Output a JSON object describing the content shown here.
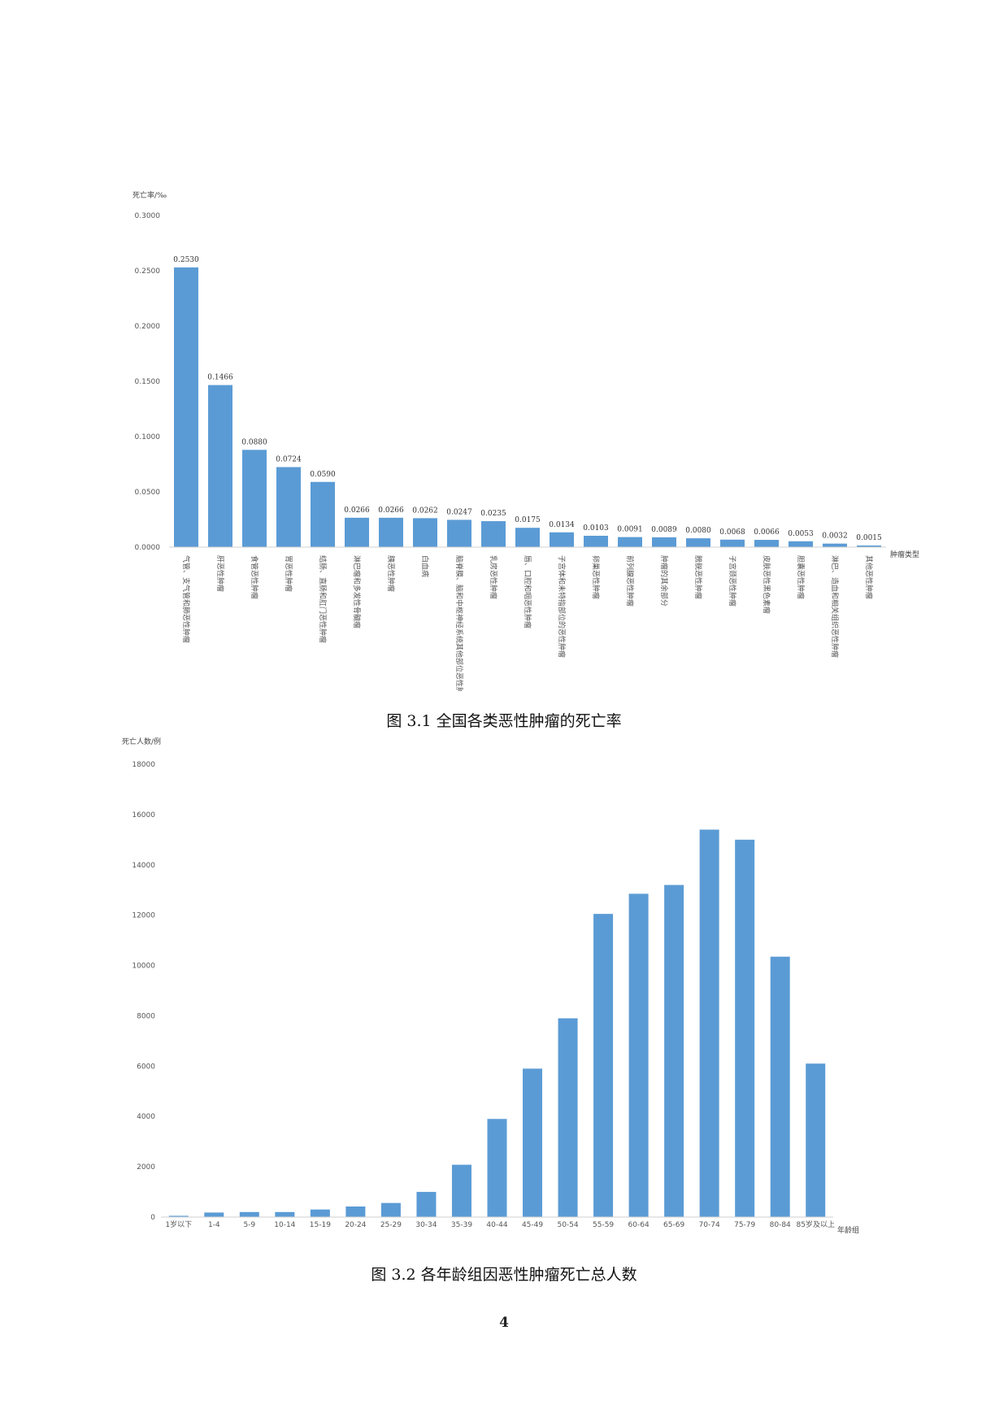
{
  "page_number": "4",
  "chart_data": [
    {
      "type": "bar",
      "caption": "图 3.1 全国各类恶性肿瘤的死亡率",
      "ylabel": "死亡率/‰",
      "xlabel": "肿瘤类型",
      "ylim": [
        0,
        0.3
      ],
      "yticks": [
        "0.0000",
        "0.0500",
        "0.1000",
        "0.1500",
        "0.2000",
        "0.2500",
        "0.3000"
      ],
      "grid": false,
      "bar_color": "#5b9bd5",
      "categories": [
        "气管、支气管和肺恶性肿瘤",
        "肝恶性肿瘤",
        "食管恶性肿瘤",
        "胃恶性肿瘤",
        "结肠、直肠和肛门恶性肿瘤",
        "淋巴瘤和多发性骨髓瘤",
        "胰恶性肿瘤",
        "白血病",
        "脑脊膜、脑和中枢神经系统其他部位恶性肿瘤",
        "乳房恶性肿瘤",
        "唇、口腔和咽恶性肿瘤",
        "子宫体和未特指部位的恶性肿瘤",
        "卵巢恶性肿瘤",
        "前列腺恶性肿瘤",
        "肿瘤的其余部分",
        "膀胱恶性肿瘤",
        "子宫颈恶性肿瘤",
        "皮肤恶性黑色素瘤",
        "胆囊恶性肿瘤",
        "淋巴、造血和相关组织恶性肿瘤",
        "其他恶性肿瘤"
      ],
      "values": [
        0.253,
        0.1466,
        0.088,
        0.0724,
        0.059,
        0.0266,
        0.0266,
        0.0262,
        0.0247,
        0.0235,
        0.0175,
        0.0134,
        0.0103,
        0.0091,
        0.0089,
        0.008,
        0.0068,
        0.0066,
        0.0053,
        0.0032,
        0.0015
      ],
      "data_labels": [
        "0.2530",
        "0.1466",
        "0.0880",
        "0.0724",
        "0.0590",
        "0.0266",
        "0.0266",
        "0.0262",
        "0.0247",
        "0.0235",
        "0.0175",
        "0.0134",
        "0.0103",
        "0.0091",
        "0.0089",
        "0.0080",
        "0.0068",
        "0.0066",
        "0.0053",
        "0.0032",
        "0.0015"
      ]
    },
    {
      "type": "bar",
      "caption": "图 3.2 各年龄组因恶性肿瘤死亡总人数",
      "ylabel": "死亡人数/例",
      "xlabel": "年龄组",
      "ylim": [
        0,
        18000
      ],
      "yticks": [
        "0",
        "2000",
        "4000",
        "6000",
        "8000",
        "10000",
        "12000",
        "14000",
        "16000",
        "18000"
      ],
      "grid": false,
      "bar_color": "#5b9bd5",
      "categories": [
        "1岁以下",
        "1-4",
        "5-9",
        "10-14",
        "15-19",
        "20-24",
        "25-29",
        "30-34",
        "35-39",
        "40-44",
        "45-49",
        "50-54",
        "55-59",
        "60-64",
        "65-69",
        "70-74",
        "75-79",
        "80-84",
        "85岁及以上"
      ],
      "values": [
        50,
        180,
        200,
        200,
        300,
        420,
        560,
        1000,
        2080,
        3900,
        5900,
        7900,
        12050,
        12850,
        13200,
        15400,
        15000,
        10350,
        6100
      ]
    }
  ]
}
